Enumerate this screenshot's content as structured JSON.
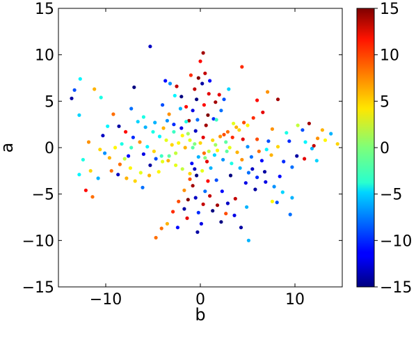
{
  "chart_data": {
    "type": "scatter",
    "xlabel": "b",
    "ylabel": "a",
    "xlim": [
      -15,
      15
    ],
    "ylim": [
      -15,
      15
    ],
    "x_ticks": [
      -10,
      0,
      10
    ],
    "x_tick_labels": [
      "−10",
      "0",
      "10"
    ],
    "y_ticks": [
      -15,
      -10,
      -5,
      0,
      5,
      10,
      15
    ],
    "y_tick_labels": [
      "−15",
      "−10",
      "−5",
      "0",
      "5",
      "10",
      "15"
    ],
    "colorbar": {
      "colormap": "jet",
      "range": [
        -15,
        15
      ],
      "ticks": [
        -15,
        -10,
        -5,
        0,
        5,
        10,
        15
      ],
      "tick_labels": [
        "−15",
        "−10",
        "−5",
        "0",
        "5",
        "10",
        "15"
      ]
    },
    "grid": false,
    "points": [
      {
        "x": -5.3,
        "y": 10.9,
        "c": -13
      },
      {
        "x": 0.3,
        "y": 10.2,
        "c": 14
      },
      {
        "x": 0.0,
        "y": 9.3,
        "c": 11
      },
      {
        "x": -12.7,
        "y": 7.4,
        "c": -4
      },
      {
        "x": 4.4,
        "y": 8.7,
        "c": 10
      },
      {
        "x": -13.3,
        "y": 6.2,
        "c": -9
      },
      {
        "x": -11.2,
        "y": 6.3,
        "c": 6
      },
      {
        "x": -10.5,
        "y": 5.4,
        "c": -3
      },
      {
        "x": -7.0,
        "y": 6.5,
        "c": -15
      },
      {
        "x": -3.7,
        "y": 7.2,
        "c": -11
      },
      {
        "x": 7.1,
        "y": 6.0,
        "c": 7
      },
      {
        "x": 8.2,
        "y": 5.2,
        "c": 14
      },
      {
        "x": 6.0,
        "y": 5.1,
        "c": 11
      },
      {
        "x": -13.6,
        "y": 5.3,
        "c": -14
      },
      {
        "x": -12.8,
        "y": 3.5,
        "c": -5
      },
      {
        "x": -9.2,
        "y": 3.6,
        "c": 8
      },
      {
        "x": -7.3,
        "y": 4.2,
        "c": -8
      },
      {
        "x": -6.0,
        "y": 3.3,
        "c": -3
      },
      {
        "x": -4.8,
        "y": 2.7,
        "c": -6
      },
      {
        "x": -3.9,
        "y": 2.1,
        "c": 6
      },
      {
        "x": -2.8,
        "y": 1.7,
        "c": -2
      },
      {
        "x": -1.9,
        "y": 1.3,
        "c": 4
      },
      {
        "x": -1.1,
        "y": 0.8,
        "c": 3
      },
      {
        "x": -0.6,
        "y": 0.4,
        "c": 0
      },
      {
        "x": 1.3,
        "y": 0.8,
        "c": 5
      },
      {
        "x": 2.1,
        "y": 1.2,
        "c": 7
      },
      {
        "x": 2.9,
        "y": 1.7,
        "c": 8
      },
      {
        "x": 3.8,
        "y": 2.2,
        "c": 6
      },
      {
        "x": 4.6,
        "y": 2.7,
        "c": 9
      },
      {
        "x": 5.6,
        "y": 3.2,
        "c": 10
      },
      {
        "x": 6.6,
        "y": 3.8,
        "c": 12
      },
      {
        "x": 3.5,
        "y": 2.6,
        "c": 3
      },
      {
        "x": 4.1,
        "y": 1.9,
        "c": 5
      },
      {
        "x": 5.0,
        "y": 2.4,
        "c": 4
      },
      {
        "x": 2.5,
        "y": 1.4,
        "c": 9
      },
      {
        "x": 11.5,
        "y": 2.6,
        "c": 14
      },
      {
        "x": 10.8,
        "y": 1.9,
        "c": -9
      },
      {
        "x": 12.9,
        "y": 1.9,
        "c": 6
      },
      {
        "x": 13.8,
        "y": 1.5,
        "c": -6
      },
      {
        "x": 14.5,
        "y": 0.4,
        "c": 5
      },
      {
        "x": 12.4,
        "y": 1.0,
        "c": 7
      },
      {
        "x": 11.1,
        "y": 0.6,
        "c": -4
      },
      {
        "x": 9.4,
        "y": 0.7,
        "c": -10
      },
      {
        "x": 8.2,
        "y": 0.1,
        "c": 5
      },
      {
        "x": 7.0,
        "y": -0.2,
        "c": -4
      },
      {
        "x": 6.2,
        "y": -0.4,
        "c": 8
      },
      {
        "x": 5.0,
        "y": 0.1,
        "c": -7
      },
      {
        "x": 3.9,
        "y": -0.5,
        "c": 6
      },
      {
        "x": 2.8,
        "y": -0.4,
        "c": -1
      },
      {
        "x": 1.8,
        "y": -0.3,
        "c": 4
      },
      {
        "x": 1.5,
        "y": -0.8,
        "c": -5
      },
      {
        "x": 2.4,
        "y": -1.3,
        "c": -7
      },
      {
        "x": 3.3,
        "y": -1.7,
        "c": -3
      },
      {
        "x": 4.2,
        "y": -2.2,
        "c": -6
      },
      {
        "x": 5.1,
        "y": -2.7,
        "c": -8
      },
      {
        "x": 6.0,
        "y": -3.2,
        "c": -10
      },
      {
        "x": 6.9,
        "y": -3.7,
        "c": -12
      },
      {
        "x": 7.8,
        "y": -4.2,
        "c": -7
      },
      {
        "x": 8.7,
        "y": -4.8,
        "c": -5
      },
      {
        "x": 9.7,
        "y": -5.4,
        "c": -6
      },
      {
        "x": 11.0,
        "y": -1.2,
        "c": 12
      },
      {
        "x": 12.3,
        "y": -1.4,
        "c": -5
      },
      {
        "x": 10.2,
        "y": -0.9,
        "c": -14
      },
      {
        "x": 9.5,
        "y": -7.2,
        "c": -8
      },
      {
        "x": 8.1,
        "y": -5.9,
        "c": -9
      },
      {
        "x": 7.6,
        "y": -5.8,
        "c": 4
      },
      {
        "x": 5.1,
        "y": -10.0,
        "c": -6
      },
      {
        "x": 4.3,
        "y": -8.6,
        "c": -14
      },
      {
        "x": 3.6,
        "y": -7.3,
        "c": -12
      },
      {
        "x": 2.9,
        "y": -6.0,
        "c": -13
      },
      {
        "x": 2.3,
        "y": -4.7,
        "c": -11
      },
      {
        "x": 1.7,
        "y": -3.5,
        "c": -9
      },
      {
        "x": 1.1,
        "y": -2.2,
        "c": -6
      },
      {
        "x": 2.2,
        "y": -8.0,
        "c": -15
      },
      {
        "x": -0.6,
        "y": -2.3,
        "c": -13
      },
      {
        "x": -1.1,
        "y": -3.4,
        "c": 9
      },
      {
        "x": -1.7,
        "y": -4.6,
        "c": 7
      },
      {
        "x": -2.3,
        "y": -5.8,
        "c": 9
      },
      {
        "x": -2.9,
        "y": -6.9,
        "c": 10
      },
      {
        "x": -3.5,
        "y": -8.2,
        "c": 6
      },
      {
        "x": -4.1,
        "y": -8.7,
        "c": 8
      },
      {
        "x": -4.7,
        "y": -9.7,
        "c": 8
      },
      {
        "x": -0.3,
        "y": -9.1,
        "c": -14
      },
      {
        "x": 0.1,
        "y": -8.2,
        "c": -12
      },
      {
        "x": -0.2,
        "y": -7.0,
        "c": -10
      },
      {
        "x": 0.3,
        "y": -6.1,
        "c": 13
      },
      {
        "x": -0.5,
        "y": -5.4,
        "c": -13
      },
      {
        "x": 0.5,
        "y": -4.7,
        "c": -8
      },
      {
        "x": -0.8,
        "y": -4.1,
        "c": 14
      },
      {
        "x": 0.8,
        "y": -3.6,
        "c": 11
      },
      {
        "x": -0.4,
        "y": -3.0,
        "c": -15
      },
      {
        "x": 0.2,
        "y": -2.5,
        "c": 3
      },
      {
        "x": -0.9,
        "y": -1.7,
        "c": -11
      },
      {
        "x": 0.7,
        "y": -1.5,
        "c": 12
      },
      {
        "x": -0.2,
        "y": -1.0,
        "c": -6
      },
      {
        "x": 0.4,
        "y": -0.6,
        "c": 8
      },
      {
        "x": -1.7,
        "y": -6.6,
        "c": -14
      },
      {
        "x": 1.3,
        "y": -6.8,
        "c": -15
      },
      {
        "x": -1.3,
        "y": -5.6,
        "c": 15
      },
      {
        "x": 1.0,
        "y": -5.2,
        "c": 13
      },
      {
        "x": 0.3,
        "y": 1.1,
        "c": 12
      },
      {
        "x": -0.5,
        "y": 1.8,
        "c": -13
      },
      {
        "x": 0.6,
        "y": 2.4,
        "c": 14
      },
      {
        "x": -0.3,
        "y": 3.0,
        "c": -8
      },
      {
        "x": 0.8,
        "y": 3.5,
        "c": 15
      },
      {
        "x": -0.8,
        "y": 4.0,
        "c": -12
      },
      {
        "x": 0.4,
        "y": 4.6,
        "c": 11
      },
      {
        "x": -0.4,
        "y": 5.2,
        "c": -15
      },
      {
        "x": 0.9,
        "y": 5.8,
        "c": 12
      },
      {
        "x": -0.6,
        "y": 6.3,
        "c": 13
      },
      {
        "x": 0.2,
        "y": 6.9,
        "c": -14
      },
      {
        "x": -0.2,
        "y": 7.5,
        "c": 15
      },
      {
        "x": 0.5,
        "y": 8.0,
        "c": 13
      },
      {
        "x": -1.2,
        "y": 2.9,
        "c": 14
      },
      {
        "x": 1.4,
        "y": 3.1,
        "c": -10
      },
      {
        "x": -1.5,
        "y": 4.4,
        "c": 11
      },
      {
        "x": 1.6,
        "y": 4.9,
        "c": 14
      },
      {
        "x": -2.0,
        "y": 5.5,
        "c": -15
      },
      {
        "x": 2.0,
        "y": 5.7,
        "c": 12
      },
      {
        "x": -2.5,
        "y": 6.6,
        "c": 13
      },
      {
        "x": 1.0,
        "y": 7.2,
        "c": -11
      },
      {
        "x": -1.0,
        "y": 7.8,
        "c": 10
      },
      {
        "x": -3.2,
        "y": 6.9,
        "c": -7
      },
      {
        "x": -2.7,
        "y": 5.6,
        "c": -4
      },
      {
        "x": -2.1,
        "y": 4.2,
        "c": -6
      },
      {
        "x": -1.5,
        "y": 2.8,
        "c": -3
      },
      {
        "x": 2.5,
        "y": 5.2,
        "c": -9
      },
      {
        "x": 3.0,
        "y": 6.3,
        "c": -5
      },
      {
        "x": 2.2,
        "y": 4.0,
        "c": -8
      },
      {
        "x": 1.7,
        "y": 3.0,
        "c": -2
      },
      {
        "x": -8.6,
        "y": 2.3,
        "c": -14
      },
      {
        "x": -7.9,
        "y": 1.7,
        "c": 11
      },
      {
        "x": -7.1,
        "y": 1.1,
        "c": -10
      },
      {
        "x": -6.4,
        "y": 0.6,
        "c": 7
      },
      {
        "x": -5.6,
        "y": 0.1,
        "c": -4
      },
      {
        "x": -4.9,
        "y": -0.4,
        "c": 5
      },
      {
        "x": -4.1,
        "y": -0.9,
        "c": -2
      },
      {
        "x": -3.4,
        "y": -1.4,
        "c": 6
      },
      {
        "x": -2.6,
        "y": -1.9,
        "c": 3
      },
      {
        "x": -1.9,
        "y": -2.3,
        "c": 2
      },
      {
        "x": -1.1,
        "y": -2.8,
        "c": 5
      },
      {
        "x": -11.8,
        "y": 0.6,
        "c": 7
      },
      {
        "x": -10.6,
        "y": -0.2,
        "c": 5
      },
      {
        "x": -9.6,
        "y": -1.1,
        "c": 6
      },
      {
        "x": -8.5,
        "y": -1.8,
        "c": 8
      },
      {
        "x": -7.4,
        "y": -2.2,
        "c": 4
      },
      {
        "x": -6.3,
        "y": -2.7,
        "c": 3
      },
      {
        "x": -5.4,
        "y": -3.0,
        "c": 6
      },
      {
        "x": -4.4,
        "y": -2.6,
        "c": 4
      },
      {
        "x": -12.4,
        "y": -1.3,
        "c": -3
      },
      {
        "x": -11.6,
        "y": -2.5,
        "c": 5
      },
      {
        "x": -10.8,
        "y": -3.3,
        "c": -6
      },
      {
        "x": -12.1,
        "y": -4.6,
        "c": 11
      },
      {
        "x": -11.4,
        "y": -5.3,
        "c": 8
      },
      {
        "x": -12.8,
        "y": -2.9,
        "c": -4
      },
      {
        "x": -9.4,
        "y": -2.5,
        "c": 8
      },
      {
        "x": -8.7,
        "y": -2.9,
        "c": -13
      },
      {
        "x": -7.8,
        "y": -3.3,
        "c": 6
      },
      {
        "x": -6.9,
        "y": -3.6,
        "c": 5
      },
      {
        "x": -6.1,
        "y": -4.3,
        "c": -8
      },
      {
        "x": -9.8,
        "y": 2.3,
        "c": -4
      },
      {
        "x": -8.3,
        "y": 0.4,
        "c": -3
      },
      {
        "x": -7.3,
        "y": 0.0,
        "c": -2
      },
      {
        "x": -6.6,
        "y": 2.8,
        "c": -5
      },
      {
        "x": -5.8,
        "y": 2.2,
        "c": -6
      },
      {
        "x": -5.0,
        "y": 1.7,
        "c": -3
      },
      {
        "x": -4.3,
        "y": 1.2,
        "c": -4
      },
      {
        "x": -3.6,
        "y": 0.8,
        "c": 3
      },
      {
        "x": -3.0,
        "y": 0.3,
        "c": 5
      },
      {
        "x": -2.3,
        "y": 0.5,
        "c": 4
      },
      {
        "x": -1.6,
        "y": 0.0,
        "c": 6
      },
      {
        "x": -2.6,
        "y": -0.6,
        "c": 2
      },
      {
        "x": -3.3,
        "y": -0.9,
        "c": -1
      },
      {
        "x": -4.0,
        "y": -1.5,
        "c": 3
      },
      {
        "x": -2.0,
        "y": 2.1,
        "c": -12
      },
      {
        "x": -1.3,
        "y": 1.5,
        "c": 1
      },
      {
        "x": -2.8,
        "y": 2.5,
        "c": -10
      },
      {
        "x": -3.5,
        "y": 2.9,
        "c": -7
      },
      {
        "x": -6.0,
        "y": -0.7,
        "c": -12
      },
      {
        "x": -4.7,
        "y": -1.2,
        "c": -9
      },
      {
        "x": -5.3,
        "y": -1.9,
        "c": -14
      },
      {
        "x": -7.6,
        "y": -0.9,
        "c": -11
      },
      {
        "x": -10.3,
        "y": 1.3,
        "c": -13
      },
      {
        "x": 0.9,
        "y": -0.4,
        "c": 2
      },
      {
        "x": 1.6,
        "y": 0.3,
        "c": 1
      },
      {
        "x": 2.7,
        "y": 0.6,
        "c": -1
      },
      {
        "x": 3.1,
        "y": 0.0,
        "c": 3
      },
      {
        "x": -0.8,
        "y": 0.0,
        "c": -1
      },
      {
        "x": 0.0,
        "y": 0.5,
        "c": 5
      },
      {
        "x": 0.5,
        "y": -1.1,
        "c": 0
      },
      {
        "x": 6.5,
        "y": -1.4,
        "c": -11
      },
      {
        "x": 7.5,
        "y": -0.8,
        "c": 6
      },
      {
        "x": 8.8,
        "y": -1.5,
        "c": -10
      },
      {
        "x": 5.5,
        "y": -2.3,
        "c": -13
      },
      {
        "x": 4.4,
        "y": -1.3,
        "c": 7
      },
      {
        "x": 6.8,
        "y": -2.6,
        "c": -14
      },
      {
        "x": 3.2,
        "y": -3.0,
        "c": -15
      },
      {
        "x": 4.8,
        "y": -3.8,
        "c": -12
      },
      {
        "x": 5.8,
        "y": -4.5,
        "c": -14
      },
      {
        "x": 3.7,
        "y": -5.5,
        "c": 13
      },
      {
        "x": 4.9,
        "y": -6.4,
        "c": -6
      },
      {
        "x": 10.3,
        "y": 2.4,
        "c": 2
      },
      {
        "x": 9.1,
        "y": 1.6,
        "c": -3
      },
      {
        "x": 7.6,
        "y": 2.0,
        "c": 7
      },
      {
        "x": -2.4,
        "y": -8.6,
        "c": -11
      },
      {
        "x": -1.4,
        "y": -7.6,
        "c": 12
      },
      {
        "x": 2.7,
        "y": -7.1,
        "c": 9
      },
      {
        "x": 1.8,
        "y": -6.2,
        "c": 14
      },
      {
        "x": -3.3,
        "y": 3.6,
        "c": 7
      },
      {
        "x": -4.0,
        "y": 4.6,
        "c": -9
      },
      {
        "x": -9.0,
        "y": 0.0,
        "c": 4
      },
      {
        "x": -8.0,
        "y": -1.2,
        "c": 2
      },
      {
        "x": -10.1,
        "y": -0.6,
        "c": -7
      },
      {
        "x": 11.8,
        "y": -0.1,
        "c": -6
      },
      {
        "x": 13.2,
        "y": 0.8,
        "c": 4
      },
      {
        "x": 12.0,
        "y": 0.2,
        "c": 13
      },
      {
        "x": 9.7,
        "y": -2.1,
        "c": -8
      },
      {
        "x": 8.4,
        "y": -3.1,
        "c": -11
      },
      {
        "x": 6.0,
        "y": 0.9,
        "c": 9
      },
      {
        "x": 7.2,
        "y": 0.7,
        "c": -9
      },
      {
        "x": 5.4,
        "y": -1.0,
        "c": -8
      },
      {
        "x": 4.5,
        "y": 0.9,
        "c": 12
      },
      {
        "x": 3.4,
        "y": 1.1,
        "c": 10
      }
    ]
  }
}
